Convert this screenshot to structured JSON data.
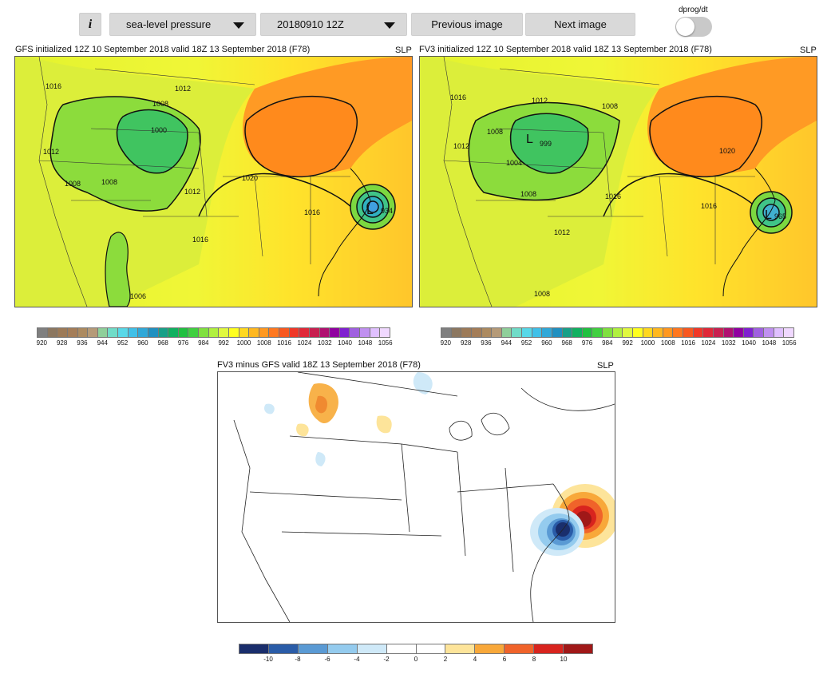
{
  "controls": {
    "info_label": "i",
    "field_select": "sea-level pressure",
    "date_select": "20180910 12Z",
    "prev_label": "Previous image",
    "next_label": "Next image",
    "toggle_label": "dprog/dt"
  },
  "panels": {
    "gfs": {
      "title": "GFS initialized 12Z 10 September 2018 valid 18Z 13 September 2018 (F78)",
      "field": "SLP",
      "contour_labels": [
        "1016",
        "1012",
        "1008",
        "1000",
        "1012",
        "1008",
        "1008",
        "1012",
        "1020",
        "1016",
        "1016",
        "1006",
        "934"
      ]
    },
    "fv3": {
      "title": "FV3 initialized 12Z 10 September 2018 valid 18Z 13 September 2018 (F78)",
      "field": "SLP",
      "contour_labels": [
        "1016",
        "1012",
        "1008",
        "1012",
        "1008",
        "999",
        "1004",
        "1008",
        "1016",
        "1020",
        "1016",
        "1012",
        "1008",
        "965"
      ]
    },
    "diff": {
      "title": "FV3 minus GFS valid 18Z 13 September 2018 (F78)",
      "field": "SLP"
    }
  },
  "slp_colorbar": {
    "ticks": [
      "920",
      "928",
      "936",
      "944",
      "952",
      "960",
      "968",
      "976",
      "984",
      "992",
      "1000",
      "1008",
      "1016",
      "1024",
      "1032",
      "1040",
      "1048",
      "1056"
    ],
    "colors": [
      "#7f7f7f",
      "#8c7760",
      "#9c7a58",
      "#a47d58",
      "#ac8a60",
      "#b59a78",
      "#8fcf9a",
      "#70dcc8",
      "#58d8e8",
      "#40c0e8",
      "#30a8d8",
      "#2090c0",
      "#18a088",
      "#10b060",
      "#20c040",
      "#40d040",
      "#80e040",
      "#b0f040",
      "#e0f840",
      "#ffff20",
      "#ffd820",
      "#ffb820",
      "#ff9820",
      "#ff7820",
      "#f85820",
      "#f03828",
      "#e02838",
      "#c82050",
      "#b01070",
      "#9000a0",
      "#8020d0",
      "#a060e0",
      "#c090f0",
      "#e0c0ff",
      "#f0d8ff"
    ]
  },
  "diff_colorbar": {
    "ticks": [
      "-10",
      "-8",
      "-6",
      "-4",
      "-2",
      "0",
      "2",
      "4",
      "6",
      "8",
      "10"
    ],
    "colors": [
      "#1a2e6c",
      "#2a5ca8",
      "#5a9ad4",
      "#94cbee",
      "#cfe9f8",
      "#ffffff",
      "#ffffff",
      "#fde49a",
      "#f8a83a",
      "#f0632a",
      "#d8241e",
      "#a01818"
    ]
  }
}
